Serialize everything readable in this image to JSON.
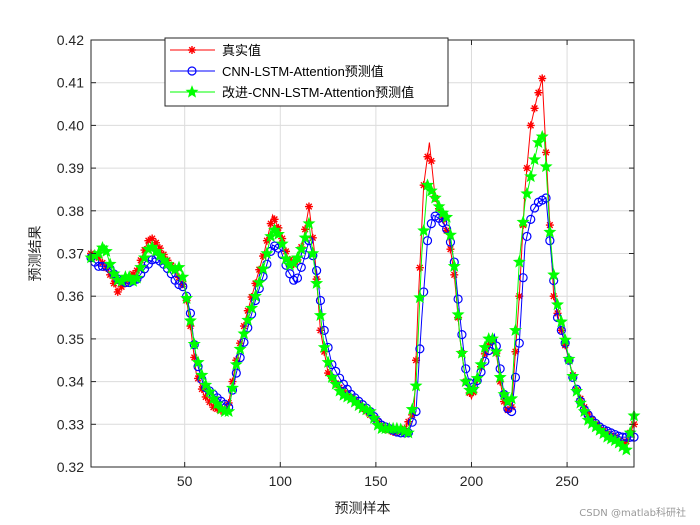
{
  "chart_data": {
    "type": "line",
    "title": "",
    "xlabel": "预测样本",
    "ylabel": "预测结果",
    "xlim": [
      1,
      285
    ],
    "ylim": [
      0.32,
      0.42
    ],
    "x_ticks": [
      50,
      100,
      150,
      200,
      250
    ],
    "y_ticks": [
      0.32,
      0.33,
      0.34,
      0.35,
      0.36,
      0.37,
      0.38,
      0.39,
      0.4,
      0.41,
      0.42
    ],
    "grid": true,
    "legend_position": "top-left",
    "series": [
      {
        "name": "真实值",
        "color": "#ff0000",
        "marker": "asterisk",
        "points": [
          [
            1,
            0.37
          ],
          [
            5,
            0.369
          ],
          [
            10,
            0.366
          ],
          [
            15,
            0.361
          ],
          [
            20,
            0.364
          ],
          [
            25,
            0.366
          ],
          [
            30,
            0.372
          ],
          [
            32,
            0.374
          ],
          [
            36,
            0.372
          ],
          [
            40,
            0.369
          ],
          [
            45,
            0.366
          ],
          [
            50,
            0.362
          ],
          [
            53,
            0.353
          ],
          [
            56,
            0.342
          ],
          [
            60,
            0.337
          ],
          [
            65,
            0.334
          ],
          [
            70,
            0.333
          ],
          [
            73,
            0.335
          ],
          [
            77,
            0.345
          ],
          [
            82,
            0.355
          ],
          [
            87,
            0.363
          ],
          [
            92,
            0.371
          ],
          [
            96,
            0.379
          ],
          [
            100,
            0.375
          ],
          [
            104,
            0.369
          ],
          [
            108,
            0.367
          ],
          [
            112,
            0.373
          ],
          [
            115,
            0.381
          ],
          [
            118,
            0.37
          ],
          [
            121,
            0.352
          ],
          [
            125,
            0.342
          ],
          [
            130,
            0.339
          ],
          [
            135,
            0.337
          ],
          [
            140,
            0.335
          ],
          [
            145,
            0.333
          ],
          [
            150,
            0.331
          ],
          [
            155,
            0.329
          ],
          [
            160,
            0.328
          ],
          [
            165,
            0.329
          ],
          [
            170,
            0.333
          ],
          [
            172,
            0.357
          ],
          [
            175,
            0.386
          ],
          [
            178,
            0.396
          ],
          [
            181,
            0.383
          ],
          [
            185,
            0.378
          ],
          [
            188,
            0.374
          ],
          [
            191,
            0.365
          ],
          [
            194,
            0.35
          ],
          [
            197,
            0.34
          ],
          [
            200,
            0.336
          ],
          [
            204,
            0.342
          ],
          [
            208,
            0.348
          ],
          [
            212,
            0.35
          ],
          [
            215,
            0.34
          ],
          [
            218,
            0.333
          ],
          [
            221,
            0.334
          ],
          [
            225,
            0.36
          ],
          [
            228,
            0.385
          ],
          [
            231,
            0.4
          ],
          [
            234,
            0.406
          ],
          [
            237,
            0.411
          ],
          [
            240,
            0.385
          ],
          [
            243,
            0.36
          ],
          [
            247,
            0.352
          ],
          [
            251,
            0.345
          ],
          [
            255,
            0.338
          ],
          [
            260,
            0.333
          ],
          [
            265,
            0.33
          ],
          [
            270,
            0.328
          ],
          [
            275,
            0.327
          ],
          [
            280,
            0.325
          ],
          [
            285,
            0.33
          ]
        ]
      },
      {
        "name": "CNN-LSTM-Attention预测值",
        "color": "#0000ff",
        "marker": "circle",
        "points": [
          [
            1,
            0.369
          ],
          [
            5,
            0.367
          ],
          [
            10,
            0.367
          ],
          [
            15,
            0.364
          ],
          [
            20,
            0.363
          ],
          [
            25,
            0.364
          ],
          [
            30,
            0.367
          ],
          [
            34,
            0.369
          ],
          [
            38,
            0.368
          ],
          [
            42,
            0.366
          ],
          [
            46,
            0.363
          ],
          [
            50,
            0.362
          ],
          [
            53,
            0.356
          ],
          [
            56,
            0.345
          ],
          [
            60,
            0.339
          ],
          [
            65,
            0.337
          ],
          [
            70,
            0.335
          ],
          [
            73,
            0.334
          ],
          [
            77,
            0.342
          ],
          [
            82,
            0.351
          ],
          [
            87,
            0.359
          ],
          [
            92,
            0.366
          ],
          [
            96,
            0.372
          ],
          [
            100,
            0.371
          ],
          [
            104,
            0.366
          ],
          [
            108,
            0.363
          ],
          [
            112,
            0.368
          ],
          [
            115,
            0.373
          ],
          [
            119,
            0.366
          ],
          [
            123,
            0.352
          ],
          [
            127,
            0.344
          ],
          [
            132,
            0.34
          ],
          [
            137,
            0.337
          ],
          [
            142,
            0.335
          ],
          [
            147,
            0.333
          ],
          [
            152,
            0.33
          ],
          [
            157,
            0.329
          ],
          [
            162,
            0.328
          ],
          [
            167,
            0.328
          ],
          [
            171,
            0.333
          ],
          [
            174,
            0.355
          ],
          [
            177,
            0.373
          ],
          [
            180,
            0.379
          ],
          [
            184,
            0.378
          ],
          [
            188,
            0.375
          ],
          [
            191,
            0.368
          ],
          [
            194,
            0.355
          ],
          [
            197,
            0.343
          ],
          [
            200,
            0.338
          ],
          [
            204,
            0.341
          ],
          [
            208,
            0.346
          ],
          [
            212,
            0.351
          ],
          [
            215,
            0.343
          ],
          [
            218,
            0.334
          ],
          [
            221,
            0.333
          ],
          [
            225,
            0.349
          ],
          [
            228,
            0.372
          ],
          [
            232,
            0.38
          ],
          [
            235,
            0.382
          ],
          [
            239,
            0.383
          ],
          [
            242,
            0.368
          ],
          [
            245,
            0.355
          ],
          [
            249,
            0.349
          ],
          [
            253,
            0.341
          ],
          [
            258,
            0.334
          ],
          [
            263,
            0.331
          ],
          [
            268,
            0.329
          ],
          [
            273,
            0.328
          ],
          [
            278,
            0.327
          ],
          [
            285,
            0.327
          ]
        ]
      },
      {
        "name": "改进-CNN-LSTM-Attention预测值",
        "color": "#00ff00",
        "marker": "pentagram",
        "points": [
          [
            1,
            0.369
          ],
          [
            5,
            0.37
          ],
          [
            8,
            0.372
          ],
          [
            12,
            0.366
          ],
          [
            16,
            0.363
          ],
          [
            20,
            0.365
          ],
          [
            24,
            0.363
          ],
          [
            28,
            0.368
          ],
          [
            32,
            0.372
          ],
          [
            36,
            0.37
          ],
          [
            40,
            0.368
          ],
          [
            44,
            0.366
          ],
          [
            48,
            0.367
          ],
          [
            52,
            0.357
          ],
          [
            56,
            0.346
          ],
          [
            60,
            0.34
          ],
          [
            65,
            0.336
          ],
          [
            70,
            0.333
          ],
          [
            73,
            0.333
          ],
          [
            77,
            0.344
          ],
          [
            82,
            0.353
          ],
          [
            87,
            0.36
          ],
          [
            92,
            0.368
          ],
          [
            96,
            0.376
          ],
          [
            100,
            0.374
          ],
          [
            104,
            0.367
          ],
          [
            108,
            0.368
          ],
          [
            112,
            0.372
          ],
          [
            115,
            0.377
          ],
          [
            119,
            0.363
          ],
          [
            123,
            0.348
          ],
          [
            127,
            0.341
          ],
          [
            132,
            0.337
          ],
          [
            137,
            0.336
          ],
          [
            142,
            0.334
          ],
          [
            147,
            0.333
          ],
          [
            152,
            0.329
          ],
          [
            157,
            0.329
          ],
          [
            162,
            0.329
          ],
          [
            167,
            0.328
          ],
          [
            171,
            0.339
          ],
          [
            174,
            0.37
          ],
          [
            177,
            0.386
          ],
          [
            180,
            0.384
          ],
          [
            184,
            0.38
          ],
          [
            188,
            0.378
          ],
          [
            191,
            0.367
          ],
          [
            194,
            0.35
          ],
          [
            197,
            0.34
          ],
          [
            200,
            0.337
          ],
          [
            204,
            0.342
          ],
          [
            208,
            0.35
          ],
          [
            212,
            0.35
          ],
          [
            215,
            0.341
          ],
          [
            218,
            0.335
          ],
          [
            221,
            0.336
          ],
          [
            225,
            0.368
          ],
          [
            228,
            0.382
          ],
          [
            232,
            0.39
          ],
          [
            235,
            0.396
          ],
          [
            238,
            0.398
          ],
          [
            241,
            0.375
          ],
          [
            244,
            0.36
          ],
          [
            248,
            0.352
          ],
          [
            252,
            0.343
          ],
          [
            256,
            0.336
          ],
          [
            261,
            0.331
          ],
          [
            266,
            0.329
          ],
          [
            271,
            0.327
          ],
          [
            276,
            0.326
          ],
          [
            281,
            0.324
          ],
          [
            285,
            0.332
          ]
        ]
      }
    ]
  },
  "watermark": "CSDN @matlab科研社"
}
